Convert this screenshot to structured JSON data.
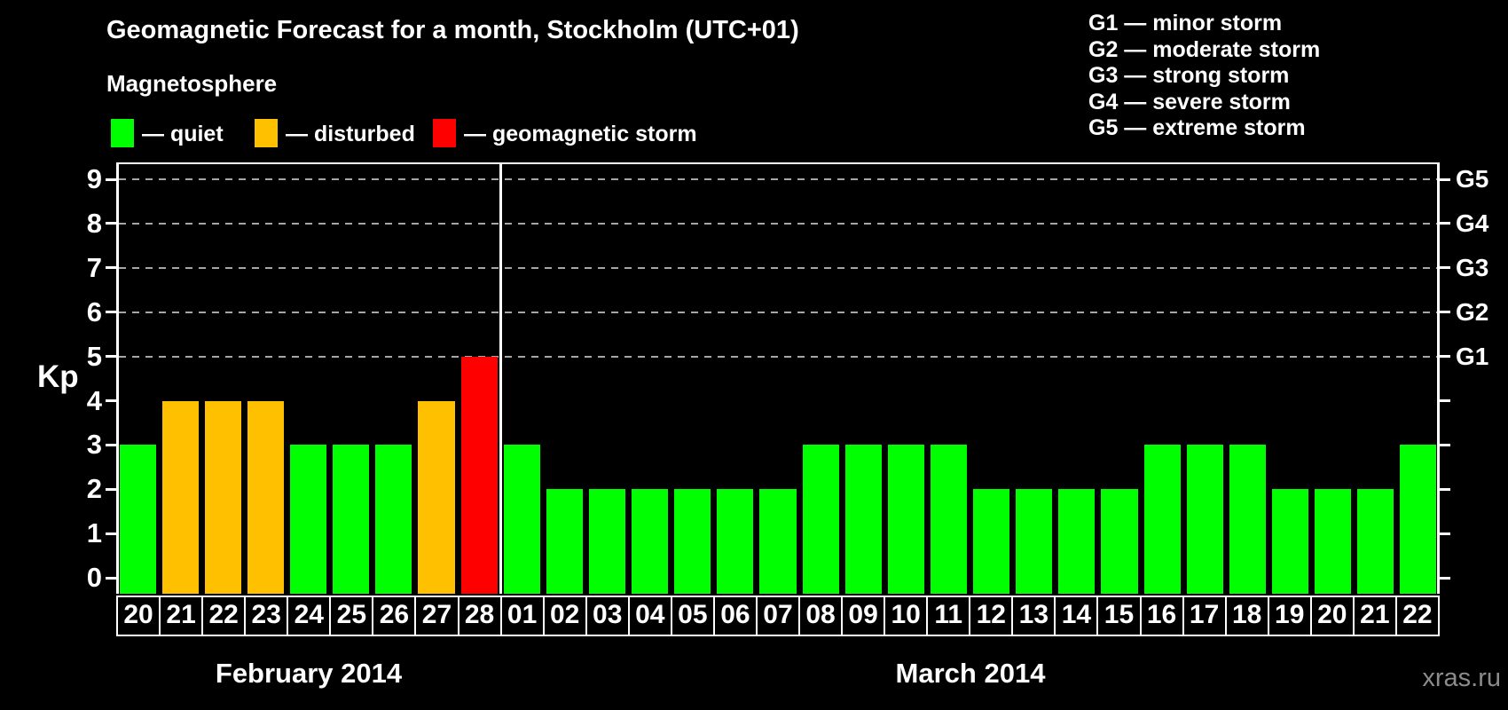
{
  "header": {
    "title": "Geomagnetic Forecast for a month, Stockholm (UTC+01)",
    "subtitle": "Magnetosphere",
    "watermark": "xras.ru"
  },
  "legend": {
    "items": [
      {
        "name": "quiet",
        "label": "— quiet",
        "color": "#00ff00"
      },
      {
        "name": "disturbed",
        "label": "— disturbed",
        "color": "#ffc000"
      },
      {
        "name": "storm",
        "label": "— geomagnetic storm",
        "color": "#ff0000"
      }
    ]
  },
  "g_scale_legend": [
    "G1 — minor storm",
    "G2 — moderate storm",
    "G3 — strong storm",
    "G4 — severe storm",
    "G5 — extreme storm"
  ],
  "chart_data": {
    "type": "bar",
    "title": "Geomagnetic Forecast for a month, Stockholm (UTC+01)",
    "ylabel": "Kp",
    "ylim": [
      0,
      9
    ],
    "yticks": [
      0,
      1,
      2,
      3,
      4,
      5,
      6,
      7,
      8,
      9
    ],
    "gridlines_at": [
      5,
      6,
      7,
      8,
      9
    ],
    "grid": "dashed-horizontal",
    "legend_position": "top-left",
    "right_axis_labels": [
      {
        "value": 5,
        "label": "G1"
      },
      {
        "value": 6,
        "label": "G2"
      },
      {
        "value": 7,
        "label": "G3"
      },
      {
        "value": 8,
        "label": "G4"
      },
      {
        "value": 9,
        "label": "G5"
      }
    ],
    "status_colors": {
      "quiet": "#00ff00",
      "disturbed": "#ffc000",
      "storm": "#ff0000"
    },
    "months": [
      {
        "label": "February 2014",
        "days": [
          {
            "day": "20",
            "kp": 3,
            "status": "quiet"
          },
          {
            "day": "21",
            "kp": 4,
            "status": "disturbed"
          },
          {
            "day": "22",
            "kp": 4,
            "status": "disturbed"
          },
          {
            "day": "23",
            "kp": 4,
            "status": "disturbed"
          },
          {
            "day": "24",
            "kp": 3,
            "status": "quiet"
          },
          {
            "day": "25",
            "kp": 3,
            "status": "quiet"
          },
          {
            "day": "26",
            "kp": 3,
            "status": "quiet"
          },
          {
            "day": "27",
            "kp": 4,
            "status": "disturbed"
          },
          {
            "day": "28",
            "kp": 5,
            "status": "storm"
          }
        ]
      },
      {
        "label": "March 2014",
        "days": [
          {
            "day": "01",
            "kp": 3,
            "status": "quiet"
          },
          {
            "day": "02",
            "kp": 2,
            "status": "quiet"
          },
          {
            "day": "03",
            "kp": 2,
            "status": "quiet"
          },
          {
            "day": "04",
            "kp": 2,
            "status": "quiet"
          },
          {
            "day": "05",
            "kp": 2,
            "status": "quiet"
          },
          {
            "day": "06",
            "kp": 2,
            "status": "quiet"
          },
          {
            "day": "07",
            "kp": 2,
            "status": "quiet"
          },
          {
            "day": "08",
            "kp": 3,
            "status": "quiet"
          },
          {
            "day": "09",
            "kp": 3,
            "status": "quiet"
          },
          {
            "day": "10",
            "kp": 3,
            "status": "quiet"
          },
          {
            "day": "11",
            "kp": 3,
            "status": "quiet"
          },
          {
            "day": "12",
            "kp": 2,
            "status": "quiet"
          },
          {
            "day": "13",
            "kp": 2,
            "status": "quiet"
          },
          {
            "day": "14",
            "kp": 2,
            "status": "quiet"
          },
          {
            "day": "15",
            "kp": 2,
            "status": "quiet"
          },
          {
            "day": "16",
            "kp": 3,
            "status": "quiet"
          },
          {
            "day": "17",
            "kp": 3,
            "status": "quiet"
          },
          {
            "day": "18",
            "kp": 3,
            "status": "quiet"
          },
          {
            "day": "19",
            "kp": 2,
            "status": "quiet"
          },
          {
            "day": "20",
            "kp": 2,
            "status": "quiet"
          },
          {
            "day": "21",
            "kp": 2,
            "status": "quiet"
          },
          {
            "day": "22",
            "kp": 3,
            "status": "quiet"
          }
        ]
      }
    ]
  }
}
